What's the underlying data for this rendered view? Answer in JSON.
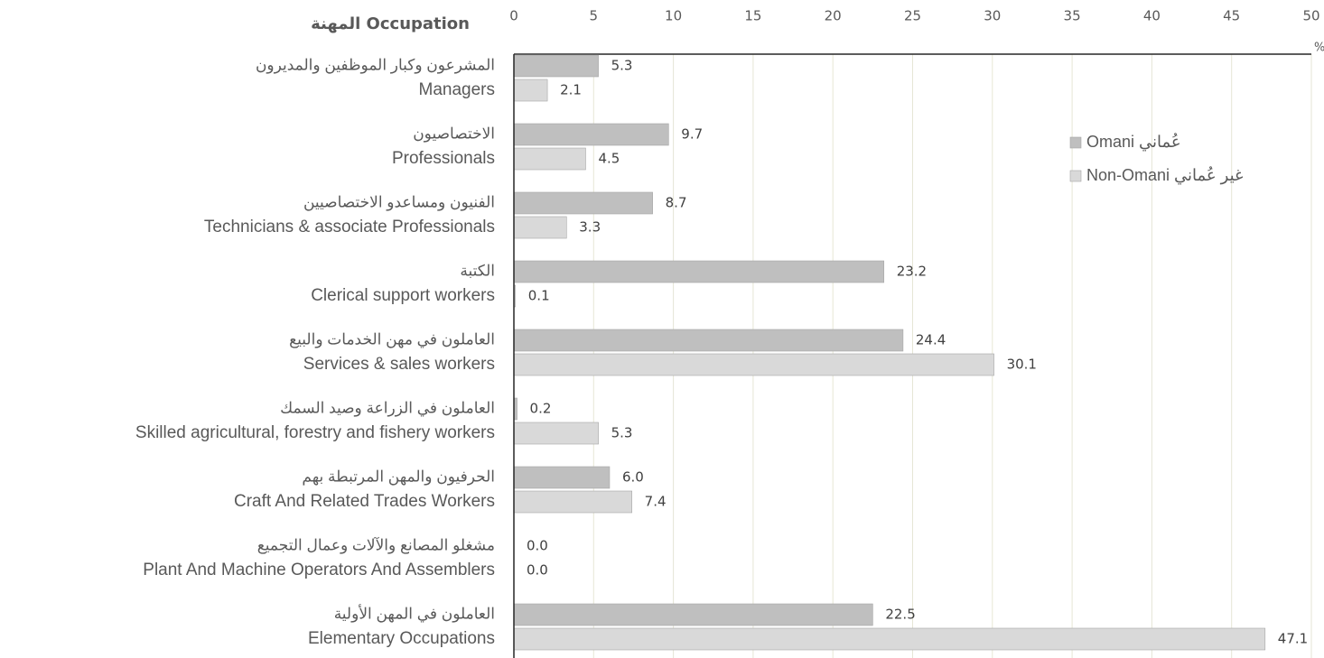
{
  "chart_data": {
    "type": "bar",
    "orientation": "horizontal",
    "axis_label": "المهنة Occupation",
    "unit": "%",
    "categories": [
      "Managers",
      "Professionals",
      "Technicians & associate Professionals",
      "Clerical support workers",
      "Services & sales workers",
      "Skilled agricultural, forestry and fishery workers",
      "Craft And Related Trades Workers",
      "Plant And Machine Operators And Assemblers",
      "Elementary Occupations"
    ],
    "categories_ar": [
      "المشرعون وكبار الموظفين والمديرون",
      "الاختصاصيون",
      "الفنيون ومساعدو الاختصاصيين",
      "الكتبة",
      "العاملون في مهن الخدمات والبيع",
      "العاملون في الزراعة وصيد السمك",
      "الحرفيون والمهن المرتبطة بهم",
      "مشغلو المصانع والآلات وعمال التجميع",
      "العاملون في المهن الأولية"
    ],
    "series": [
      {
        "name": "Omani عُماني",
        "color": "#bfbfbf",
        "values": [
          5.3,
          9.7,
          8.7,
          23.2,
          24.4,
          0.2,
          6.0,
          0.0,
          22.5
        ],
        "value_labels": [
          "5.3",
          "9.7",
          "8.7",
          "23.2",
          "24.4",
          "0.2",
          "6.0",
          "0.0",
          "22.5"
        ]
      },
      {
        "name": "Non-Omani غير عُماني",
        "color": "#d9d9d9",
        "values": [
          2.1,
          4.5,
          3.3,
          0.1,
          30.1,
          5.3,
          7.4,
          0.0,
          47.1
        ],
        "value_labels": [
          "2.1",
          "4.5",
          "3.3",
          "0.1",
          "30.1",
          "5.3",
          "7.4",
          "0.0",
          "47.1"
        ]
      }
    ],
    "xlim": [
      0,
      50
    ],
    "xticks": [
      0,
      5,
      10,
      15,
      20,
      25,
      30,
      35,
      40,
      45,
      50
    ],
    "grid": true,
    "legend": "upper right"
  }
}
